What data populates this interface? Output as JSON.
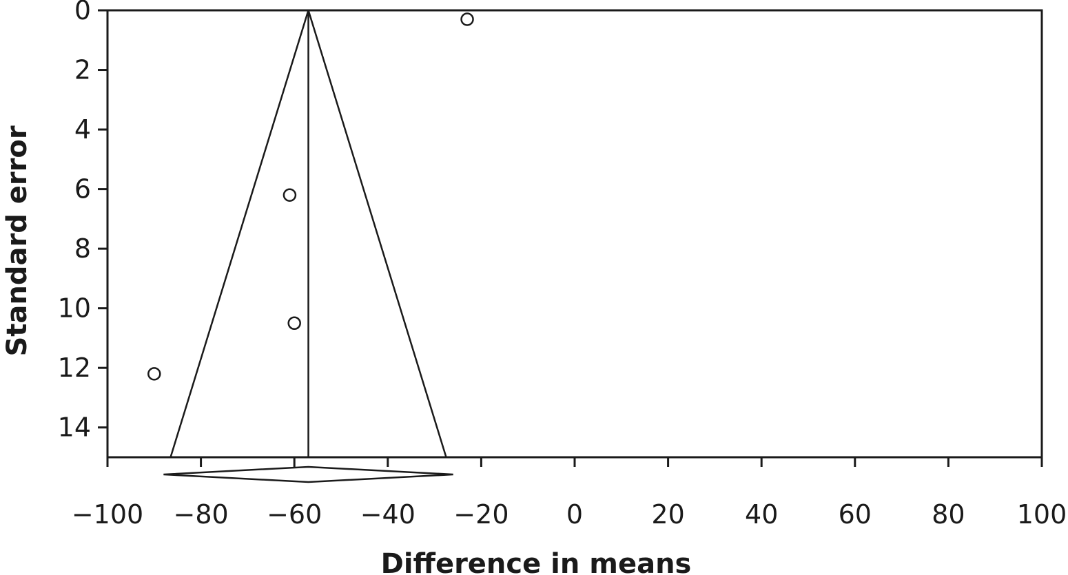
{
  "chart_data": {
    "type": "scatter",
    "subtype": "funnel-plot",
    "title": "",
    "xlabel": "Difference in means",
    "ylabel": "Standard error",
    "xlim": [
      -100,
      100
    ],
    "ylim": [
      15,
      0
    ],
    "y_inverted": true,
    "x_ticks": [
      -100,
      -80,
      -60,
      -40,
      -20,
      0,
      20,
      40,
      60,
      80,
      100
    ],
    "x_tick_labels": [
      "−100",
      "−80",
      "−60",
      "−40",
      "−20",
      "0",
      "20",
      "40",
      "60",
      "80",
      "100"
    ],
    "y_ticks": [
      0,
      2,
      4,
      6,
      8,
      10,
      12,
      14
    ],
    "y_tick_labels": [
      "0",
      "2",
      "4",
      "6",
      "8",
      "10",
      "12",
      "14"
    ],
    "grid": false,
    "points": [
      {
        "x": -23,
        "y": 0.3
      },
      {
        "x": -61,
        "y": 6.2
      },
      {
        "x": -60,
        "y": 10.5
      },
      {
        "x": -90,
        "y": 12.2
      }
    ],
    "pooled_effect": -57,
    "funnel_bottom_x": [
      -86.5,
      -27.5
    ],
    "diamond": {
      "center": -57,
      "lower": -88,
      "upper": -26
    }
  }
}
